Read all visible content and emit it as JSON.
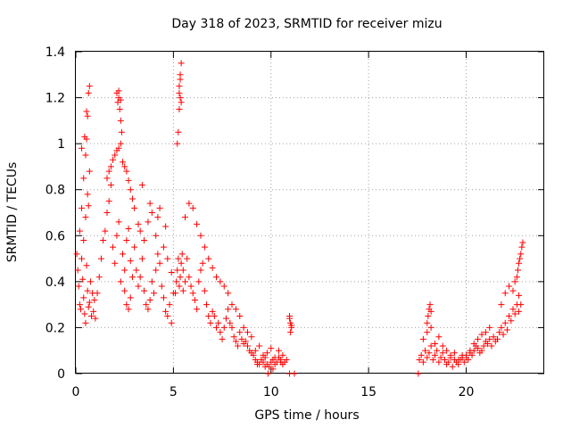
{
  "chart_data": {
    "type": "scatter",
    "title": "Day 318 of 2023, SRMTID for receiver mizu",
    "xlabel": "GPS time / hours",
    "ylabel": "SRMTID / TECUs",
    "xlim": [
      0,
      24
    ],
    "ylim": [
      0,
      1.4
    ],
    "x_ticks": [
      0,
      5,
      10,
      15,
      20
    ],
    "y_ticks": [
      0,
      0.2,
      0.4,
      0.6,
      0.8,
      1,
      1.2,
      1.4
    ],
    "x_tick_labels": [
      "0",
      "5",
      "10",
      "15",
      "20"
    ],
    "y_tick_labels": [
      "0",
      "0.2",
      "0.4",
      "0.6",
      "0.8",
      "1",
      "1.2",
      "1.4"
    ],
    "grid": true,
    "marker": "+",
    "color": "#ff0000",
    "series": [
      {
        "name": "SRMTID",
        "x": [
          0.05,
          0.1,
          0.15,
          0.2,
          0.25,
          0.3,
          0.35,
          0.4,
          0.45,
          0.5,
          0.55,
          0.6,
          0.65,
          0.7,
          0.75,
          0.8,
          0.85,
          0.9,
          0.95,
          1.0,
          0.2,
          0.3,
          0.4,
          0.5,
          0.55,
          0.6,
          0.65,
          0.7,
          0.4,
          0.5,
          0.6,
          0.7,
          0.3,
          0.45,
          0.55,
          0.65,
          1.1,
          1.2,
          1.3,
          1.4,
          1.5,
          1.6,
          1.7,
          1.8,
          1.9,
          2.0,
          2.1,
          2.2,
          2.3,
          2.4,
          2.5,
          2.6,
          2.7,
          2.8,
          2.9,
          3.0,
          1.6,
          1.8,
          2.0,
          2.2,
          2.4,
          2.6,
          2.8,
          3.0,
          3.2,
          1.7,
          1.9,
          2.1,
          2.3,
          2.5,
          2.7,
          2.9,
          2.1,
          2.15,
          2.2,
          2.25,
          2.3,
          2.35,
          2.2,
          2.3,
          2.5,
          2.6,
          2.7,
          2.8,
          3.1,
          3.2,
          3.3,
          3.4,
          3.5,
          3.6,
          3.7,
          3.8,
          3.9,
          4.0,
          4.1,
          4.2,
          4.3,
          4.4,
          4.5,
          4.6,
          4.7,
          4.8,
          4.9,
          5.0,
          3.3,
          3.5,
          3.7,
          3.9,
          4.1,
          4.3,
          4.5,
          4.7,
          4.9,
          3.4,
          3.8,
          4.2,
          4.6,
          5.1,
          5.15,
          5.2,
          5.25,
          5.3,
          5.35,
          5.4,
          5.45,
          5.5,
          5.2,
          5.25,
          5.3,
          5.35,
          5.3,
          5.35,
          5.4,
          5.35,
          5.3,
          5.4,
          5.5,
          5.6,
          5.7,
          5.8,
          5.9,
          6.0,
          6.1,
          6.2,
          6.3,
          6.4,
          6.5,
          6.6,
          6.7,
          6.8,
          6.9,
          7.0,
          5.6,
          5.8,
          6.0,
          6.2,
          6.4,
          6.6,
          6.8,
          7.0,
          7.2,
          7.4,
          7.6,
          7.8,
          8.0,
          8.2,
          8.4,
          8.6,
          8.8,
          9.0,
          7.1,
          7.2,
          7.3,
          7.4,
          7.5,
          7.6,
          7.7,
          7.8,
          7.9,
          8.0,
          8.1,
          8.2,
          8.3,
          8.4,
          8.5,
          8.6,
          8.7,
          8.8,
          8.9,
          9.0,
          9.1,
          9.2,
          9.3,
          9.4,
          9.5,
          9.6,
          9.7,
          9.8,
          9.9,
          10.0,
          10.1,
          10.2,
          10.3,
          10.4,
          10.5,
          10.6,
          10.7,
          10.8,
          9.2,
          9.4,
          9.6,
          9.8,
          10.0,
          10.2,
          10.4,
          10.6,
          9.3,
          9.7,
          10.1,
          10.5,
          10.95,
          11.0,
          11.05,
          11.0,
          10.95,
          11.05,
          9.85,
          10.95,
          11.2,
          17.55,
          17.6,
          17.7,
          17.8,
          17.9,
          18.0,
          18.1,
          18.2,
          18.3,
          18.4,
          18.5,
          18.6,
          18.7,
          18.8,
          18.9,
          19.0,
          19.1,
          19.2,
          19.3,
          19.4,
          19.5,
          19.6,
          19.7,
          19.8,
          19.9,
          20.0,
          20.1,
          20.2,
          20.3,
          20.4,
          20.5,
          20.6,
          20.7,
          20.8,
          20.9,
          21.0,
          21.1,
          21.2,
          21.3,
          21.4,
          21.5,
          17.8,
          18.0,
          18.2,
          18.4,
          18.6,
          18.8,
          19.0,
          19.2,
          19.4,
          19.6,
          19.8,
          20.0,
          20.2,
          20.4,
          20.6,
          20.8,
          21.0,
          21.2,
          18.0,
          18.05,
          18.1,
          18.15,
          18.2,
          21.6,
          21.7,
          21.8,
          21.9,
          22.0,
          22.1,
          22.2,
          22.3,
          22.4,
          22.5,
          22.6,
          22.7,
          21.8,
          22.0,
          22.2,
          22.4,
          22.5,
          22.6,
          22.65,
          22.7,
          22.75,
          22.8,
          22.85,
          22.9,
          22.7,
          22.8
        ],
        "y": [
          0.52,
          0.45,
          0.38,
          0.3,
          0.28,
          0.5,
          0.41,
          0.33,
          0.26,
          0.22,
          0.47,
          0.36,
          0.29,
          0.31,
          0.4,
          0.25,
          0.35,
          0.27,
          0.32,
          0.24,
          0.62,
          0.72,
          0.85,
          0.95,
          1.02,
          1.12,
          1.22,
          1.25,
          0.58,
          0.68,
          0.78,
          0.88,
          0.98,
          1.03,
          1.14,
          0.73,
          0.35,
          0.42,
          0.5,
          0.58,
          0.62,
          0.7,
          0.75,
          0.82,
          0.55,
          0.48,
          0.6,
          0.66,
          0.4,
          0.52,
          0.45,
          0.58,
          0.63,
          0.49,
          0.42,
          0.55,
          0.85,
          0.9,
          0.95,
          0.98,
          0.92,
          0.88,
          0.8,
          0.72,
          0.65,
          0.88,
          0.93,
          0.97,
          1.0,
          0.9,
          0.84,
          0.76,
          1.22,
          1.18,
          1.2,
          1.15,
          1.1,
          1.05,
          1.23,
          1.19,
          0.36,
          0.3,
          0.28,
          0.33,
          0.45,
          0.38,
          0.42,
          0.5,
          0.36,
          0.3,
          0.28,
          0.32,
          0.4,
          0.35,
          0.45,
          0.52,
          0.48,
          0.38,
          0.33,
          0.27,
          0.25,
          0.3,
          0.22,
          0.35,
          0.62,
          0.58,
          0.66,
          0.7,
          0.6,
          0.72,
          0.55,
          0.5,
          0.44,
          0.82,
          0.74,
          0.68,
          0.64,
          0.35,
          0.4,
          0.45,
          0.5,
          0.38,
          0.42,
          0.48,
          0.52,
          0.36,
          1.0,
          1.05,
          1.15,
          1.2,
          1.25,
          1.3,
          1.35,
          1.28,
          1.22,
          1.18,
          0.45,
          0.4,
          0.5,
          0.42,
          0.38,
          0.35,
          0.32,
          0.28,
          0.4,
          0.45,
          0.48,
          0.36,
          0.3,
          0.25,
          0.22,
          0.27,
          0.68,
          0.74,
          0.72,
          0.65,
          0.6,
          0.55,
          0.5,
          0.46,
          0.42,
          0.4,
          0.38,
          0.35,
          0.3,
          0.28,
          0.25,
          0.2,
          0.18,
          0.16,
          0.25,
          0.2,
          0.22,
          0.18,
          0.15,
          0.2,
          0.24,
          0.28,
          0.22,
          0.2,
          0.16,
          0.14,
          0.12,
          0.18,
          0.15,
          0.13,
          0.14,
          0.12,
          0.1,
          0.09,
          0.08,
          0.06,
          0.05,
          0.04,
          0.06,
          0.05,
          0.07,
          0.04,
          0.03,
          0.05,
          0.06,
          0.04,
          0.05,
          0.07,
          0.06,
          0.04,
          0.05,
          0.06,
          0.1,
          0.12,
          0.08,
          0.09,
          0.11,
          0.07,
          0.1,
          0.08,
          0.04,
          0.03,
          0.02,
          0.05,
          0.25,
          0.22,
          0.2,
          0.18,
          0.24,
          0.21,
          0.0,
          0.0,
          0.0,
          0.0,
          0.06,
          0.08,
          0.05,
          0.1,
          0.07,
          0.09,
          0.12,
          0.06,
          0.08,
          0.1,
          0.05,
          0.07,
          0.09,
          0.06,
          0.04,
          0.05,
          0.07,
          0.03,
          0.06,
          0.05,
          0.04,
          0.06,
          0.08,
          0.05,
          0.07,
          0.06,
          0.09,
          0.08,
          0.1,
          0.12,
          0.11,
          0.09,
          0.1,
          0.12,
          0.14,
          0.13,
          0.15,
          0.12,
          0.16,
          0.14,
          0.15,
          0.18,
          0.2,
          0.13,
          0.16,
          0.12,
          0.1,
          0.08,
          0.09,
          0.06,
          0.07,
          0.08,
          0.1,
          0.13,
          0.15,
          0.17,
          0.18,
          0.2,
          0.22,
          0.25,
          0.28,
          0.3,
          0.27,
          0.15,
          0.18,
          0.2,
          0.17,
          0.22,
          0.19,
          0.25,
          0.23,
          0.28,
          0.26,
          0.3,
          0.34,
          0.3,
          0.35,
          0.38,
          0.36,
          0.4,
          0.42,
          0.45,
          0.48,
          0.5,
          0.52,
          0.55,
          0.57,
          0.27,
          0.3
        ]
      }
    ]
  }
}
